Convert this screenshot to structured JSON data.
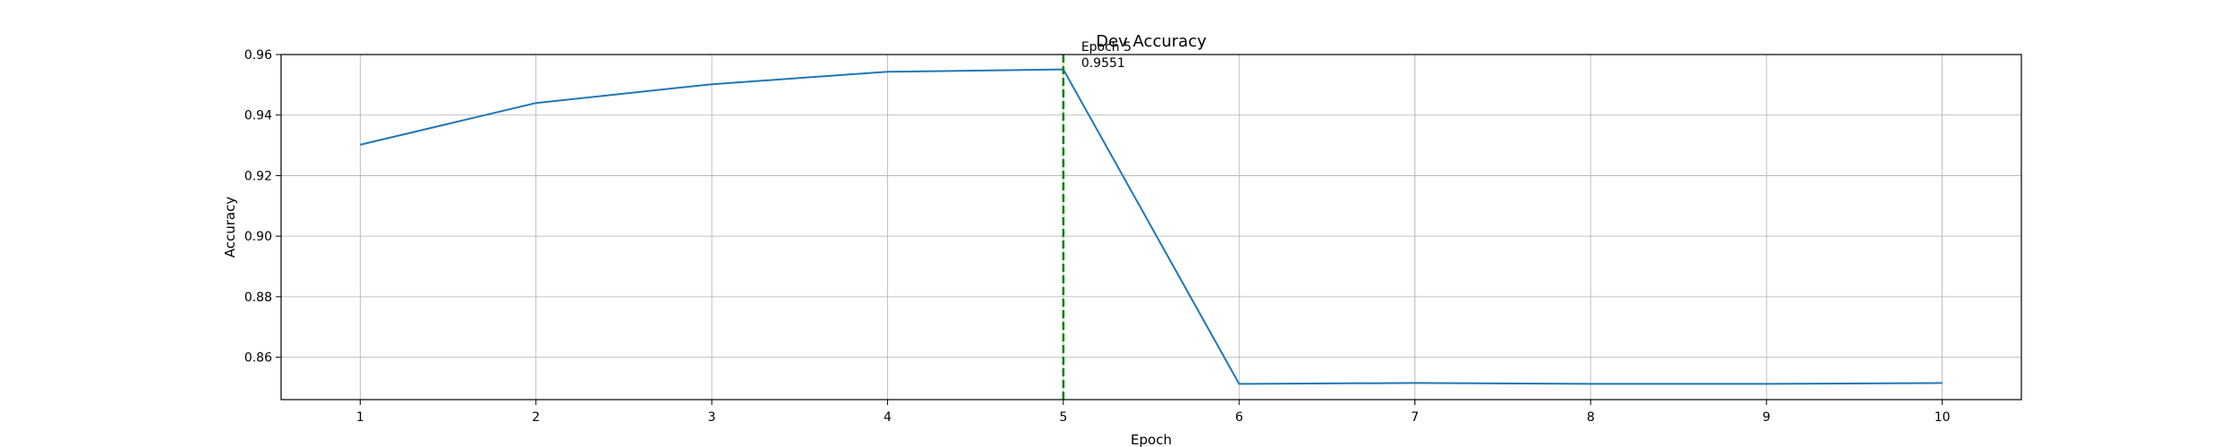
{
  "chart_data": {
    "type": "line",
    "title": "Dev Accuracy",
    "xlabel": "Epoch",
    "ylabel": "Accuracy",
    "xlim": [
      0.55,
      10.45
    ],
    "ylim": [
      0.846,
      0.96
    ],
    "xticks": [
      1,
      2,
      3,
      4,
      5,
      6,
      7,
      8,
      9,
      10
    ],
    "yticks": [
      0.86,
      0.88,
      0.9,
      0.92,
      0.94,
      0.96
    ],
    "ytick_labels": [
      "0.86",
      "0.88",
      "0.90",
      "0.92",
      "0.94",
      "0.96"
    ],
    "grid": true,
    "series": [
      {
        "color": "#1f77b4",
        "x": [
          1,
          2,
          3,
          4,
          5,
          6,
          7,
          8,
          9,
          10
        ],
        "y": [
          0.9302,
          0.944,
          0.9502,
          0.9543,
          0.9551,
          0.8512,
          0.8515,
          0.8512,
          0.8512,
          0.8515
        ]
      }
    ],
    "marker_line": {
      "x": 5,
      "color": "#008000",
      "style": "dashed"
    },
    "annotation": {
      "x": 5,
      "line1": "Epoch 5",
      "line2": "0.9551"
    }
  }
}
